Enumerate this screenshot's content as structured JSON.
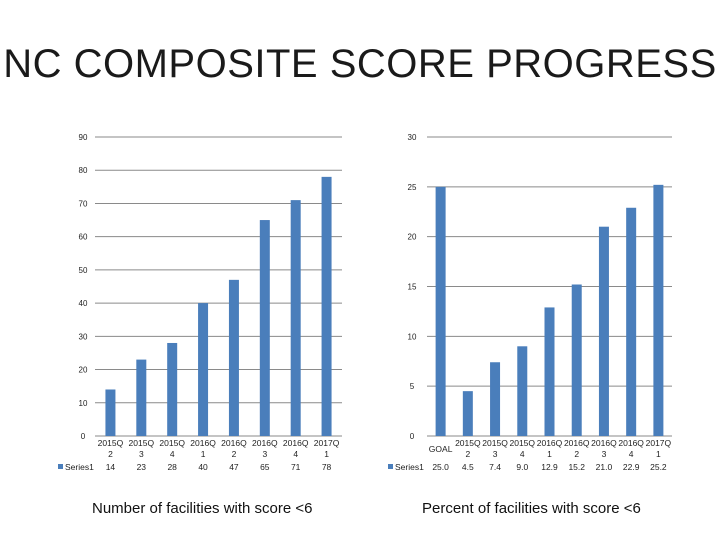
{
  "slide": {
    "title": "NC COMPOSITE SCORE PROGRESS"
  },
  "chart_data": [
    {
      "type": "bar",
      "caption": "Number of facilities with score <6",
      "categories": [
        "2015Q 2",
        "2015Q 3",
        "2015Q 4",
        "2016Q 1",
        "2016Q 2",
        "2016Q 3",
        "2016Q 4",
        "2017Q 1"
      ],
      "series": [
        {
          "name": "Series1",
          "values": [
            14,
            23,
            28,
            40,
            47,
            65,
            71,
            78
          ]
        }
      ],
      "ylim": [
        0,
        90
      ],
      "yticks": [
        0,
        10,
        20,
        30,
        40,
        50,
        60,
        70,
        80,
        90
      ],
      "data_table_values": [
        "14",
        "23",
        "28",
        "40",
        "47",
        "65",
        "71",
        "78"
      ],
      "grid": true,
      "legend": "data-table-left",
      "bar_color": "#4a7ebb"
    },
    {
      "type": "bar",
      "caption": "Percent of facilities with score <6",
      "categories": [
        "GOAL",
        "2015Q 2",
        "2015Q 3",
        "2015Q 4",
        "2016Q 1",
        "2016Q 2",
        "2016Q 3",
        "2016Q 4",
        "2017Q 1"
      ],
      "series": [
        {
          "name": "Series1",
          "values": [
            25.0,
            4.5,
            7.4,
            9.0,
            12.9,
            15.2,
            21.0,
            22.9,
            25.2
          ]
        }
      ],
      "ylim": [
        0,
        30
      ],
      "yticks": [
        0,
        5,
        10,
        15,
        20,
        25,
        30
      ],
      "data_table_values": [
        "25.0",
        "4.5",
        "7.4",
        "9.0",
        "12.9",
        "15.2",
        "21.0",
        "22.9",
        "25.2"
      ],
      "grid": true,
      "legend": "data-table-left",
      "bar_color": "#4a7ebb"
    }
  ]
}
